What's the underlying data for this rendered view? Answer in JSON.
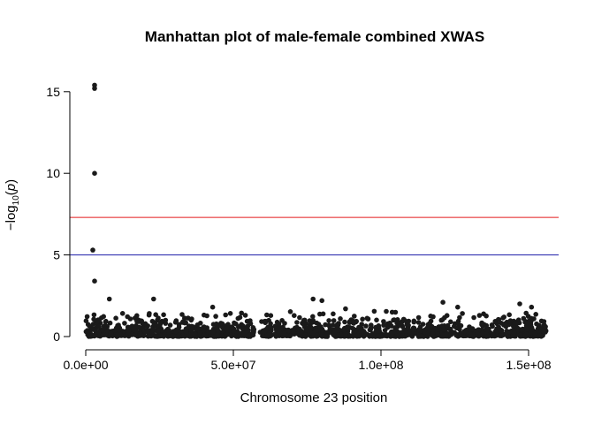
{
  "chart_data": {
    "type": "scatter",
    "title": "Manhattan plot of male-female combined XWAS",
    "xlabel": "Chromosome 23 position",
    "ylabel": "−log10(p)",
    "xlim": [
      0,
      155000000
    ],
    "ylim": [
      0,
      16
    ],
    "xticks": [
      0,
      50000000,
      100000000,
      150000000
    ],
    "xtick_labels": [
      "0.0e+00",
      "5.0e+07",
      "1.0e+08",
      "1.5e+08"
    ],
    "yticks": [
      0,
      5,
      10,
      15
    ],
    "ytick_labels": [
      "0",
      "5",
      "10",
      "15"
    ],
    "grid": false,
    "point_color": "#1a1a1a",
    "thresholds": [
      {
        "value": 7.3,
        "color": "#e31a1c"
      },
      {
        "value": 5.0,
        "color": "#1f1fa8"
      }
    ],
    "highlighted_points": [
      {
        "x": 3000000,
        "y": 15.4
      },
      {
        "x": 3000000,
        "y": 15.2
      },
      {
        "x": 3000000,
        "y": 10.0
      },
      {
        "x": 2400000,
        "y": 5.3
      },
      {
        "x": 3000000,
        "y": 3.4
      },
      {
        "x": 8000000,
        "y": 2.3
      },
      {
        "x": 23000000,
        "y": 2.3
      },
      {
        "x": 43000000,
        "y": 1.8
      },
      {
        "x": 77000000,
        "y": 2.3
      },
      {
        "x": 80000000,
        "y": 2.2
      },
      {
        "x": 121000000,
        "y": 2.1
      },
      {
        "x": 147000000,
        "y": 2.0
      },
      {
        "x": 151000000,
        "y": 1.8
      },
      {
        "x": 126000000,
        "y": 1.8
      },
      {
        "x": 88000000,
        "y": 1.7
      }
    ],
    "background_points": {
      "count": 1400,
      "x_segments": [
        [
          0,
          57000000
        ],
        [
          64000000,
          156000000
        ]
      ],
      "sparse_x": [
        [
          59000000,
          63000000
        ]
      ],
      "y_range": [
        0,
        1.6
      ],
      "description_of_distribution": "dense band of points near zero across chromosome"
    }
  }
}
